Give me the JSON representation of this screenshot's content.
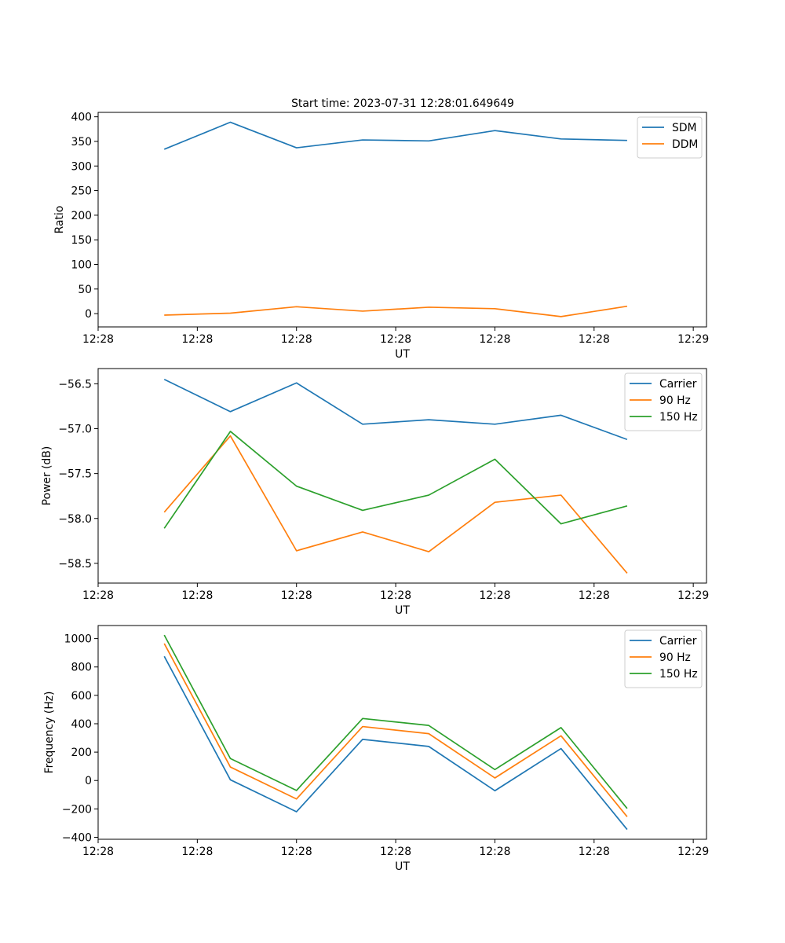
{
  "figure": {
    "title": "Start time: 2023-07-31 12:28:01.649649"
  },
  "chart_data": [
    {
      "type": "line",
      "title": "Start time: 2023-07-31 12:28:01.649649",
      "xlabel": "UT",
      "ylabel": "Ratio",
      "x": [
        1,
        2,
        3,
        4,
        5,
        6,
        7,
        8
      ],
      "xlim": [
        0,
        9.2
      ],
      "x_ticks": [
        0,
        1.5,
        3,
        4.5,
        6,
        7.5,
        9
      ],
      "x_tick_labels": [
        "12:28",
        "12:28",
        "12:28",
        "12:28",
        "12:28",
        "12:28",
        "12:29"
      ],
      "ylim": [
        -27,
        409
      ],
      "y_ticks": [
        0,
        50,
        100,
        150,
        200,
        250,
        300,
        350,
        400
      ],
      "y_tick_labels": [
        "0",
        "50",
        "100",
        "150",
        "200",
        "250",
        "300",
        "350",
        "400"
      ],
      "legend_position": "top-right",
      "series": [
        {
          "name": "SDM",
          "color": "#1f77b4",
          "values": [
            334,
            389,
            337,
            353,
            351,
            372,
            355,
            352
          ]
        },
        {
          "name": "DDM",
          "color": "#ff7f0e",
          "values": [
            -3,
            1,
            14,
            5,
            13,
            10,
            -6,
            15
          ]
        }
      ]
    },
    {
      "type": "line",
      "title": "",
      "xlabel": "UT",
      "ylabel": "Power (dB)",
      "x": [
        1,
        2,
        3,
        4,
        5,
        6,
        7,
        8
      ],
      "xlim": [
        0,
        9.2
      ],
      "x_ticks": [
        0,
        1.5,
        3,
        4.5,
        6,
        7.5,
        9
      ],
      "x_tick_labels": [
        "12:28",
        "12:28",
        "12:28",
        "12:28",
        "12:28",
        "12:28",
        "12:29"
      ],
      "ylim": [
        -58.72,
        -56.33
      ],
      "y_ticks": [
        -56.5,
        -57.0,
        -57.5,
        -58.0,
        -58.5
      ],
      "y_tick_labels": [
        "−56.5",
        "−57.0",
        "−57.5",
        "−58.0",
        "−58.5"
      ],
      "legend_position": "top-right",
      "series": [
        {
          "name": "Carrier",
          "color": "#1f77b4",
          "values": [
            -56.45,
            -56.81,
            -56.49,
            -56.95,
            -56.9,
            -56.95,
            -56.85,
            -57.12
          ]
        },
        {
          "name": "90 Hz",
          "color": "#ff7f0e",
          "values": [
            -57.93,
            -57.08,
            -58.36,
            -58.15,
            -58.37,
            -57.82,
            -57.74,
            -58.61
          ]
        },
        {
          "name": "150 Hz",
          "color": "#2ca02c",
          "values": [
            -58.11,
            -57.03,
            -57.64,
            -57.91,
            -57.74,
            -57.34,
            -58.06,
            -57.86
          ]
        }
      ]
    },
    {
      "type": "line",
      "title": "",
      "xlabel": "UT",
      "ylabel": "Frequency (Hz)",
      "x": [
        1,
        2,
        3,
        4,
        5,
        6,
        7,
        8
      ],
      "xlim": [
        0,
        9.2
      ],
      "x_ticks": [
        0,
        1.5,
        3,
        4.5,
        6,
        7.5,
        9
      ],
      "x_tick_labels": [
        "12:28",
        "12:28",
        "12:28",
        "12:28",
        "12:28",
        "12:28",
        "12:29"
      ],
      "ylim": [
        -414,
        1092
      ],
      "y_ticks": [
        1000,
        800,
        600,
        400,
        200,
        0,
        -200,
        -400
      ],
      "y_tick_labels": [
        "1000",
        "800",
        "600",
        "400",
        "200",
        "0",
        "−200",
        "−400"
      ],
      "legend_position": "top-right",
      "series": [
        {
          "name": "Carrier",
          "color": "#1f77b4",
          "values": [
            875,
            5,
            -220,
            290,
            240,
            -72,
            225,
            -345
          ]
        },
        {
          "name": "90 Hz",
          "color": "#ff7f0e",
          "values": [
            965,
            95,
            -130,
            380,
            330,
            18,
            315,
            -255
          ]
        },
        {
          "name": "150 Hz",
          "color": "#2ca02c",
          "values": [
            1025,
            155,
            -70,
            437,
            388,
            77,
            373,
            -197
          ]
        }
      ]
    }
  ]
}
